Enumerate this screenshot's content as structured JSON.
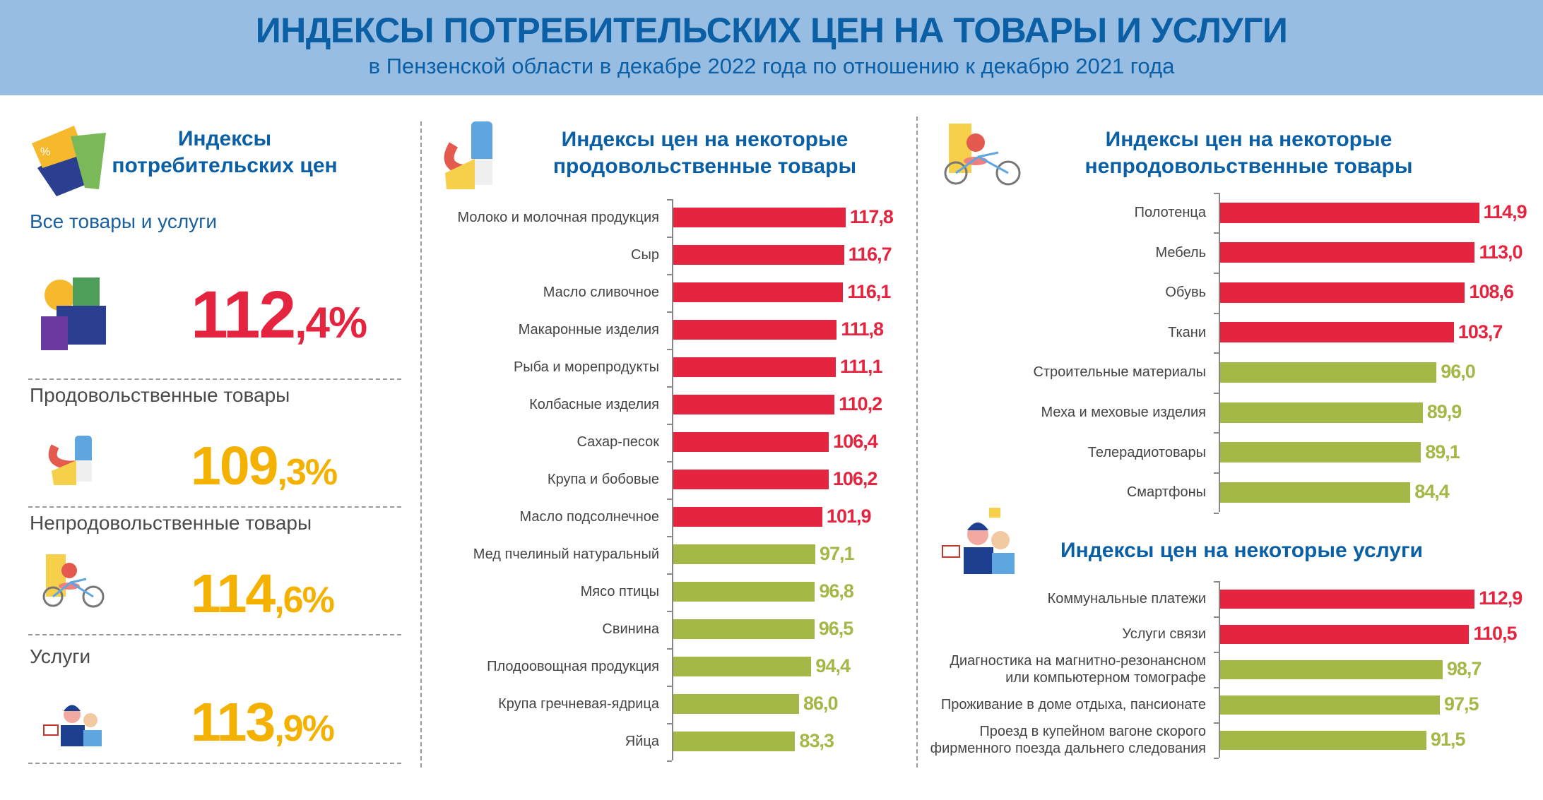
{
  "header": {
    "title": "ИНДЕКСЫ ПОТРЕБИТЕЛЬСКИХ ЦЕН НА ТОВАРЫ И УСЛУГИ",
    "subtitle": "в Пензенской области в декабре 2022 года по отношению к декабрю 2021 года"
  },
  "colors": {
    "above_100": "#e5243f",
    "below_100": "#a3b846",
    "highlight": "#f5b100",
    "heading": "#0b5fa5",
    "header_bg": "#97bde3"
  },
  "summary": {
    "title_line1": "Индексы",
    "title_line2": "потребительских цен",
    "icon": "price-tags-icon",
    "items": [
      {
        "label": "Все товары и услуги",
        "int": "112",
        "dec": ",4%",
        "icon": "gifts-coin-icon"
      },
      {
        "label": "Продовольственные  товары",
        "int": "109",
        "dec": ",3%",
        "icon": "food-icon"
      },
      {
        "label": "Непродовольственные  товары",
        "int": "114",
        "dec": ",6%",
        "icon": "coat-bicycle-icon"
      },
      {
        "label": "Услуги",
        "int": "113",
        "dec": ",9%",
        "icon": "people-services-icon"
      }
    ]
  },
  "chart_data": [
    {
      "type": "bar",
      "orientation": "horizontal",
      "title_line1": "Индексы цен на некоторые",
      "title_line2": "продовольственные товары",
      "categories": [
        "Молоко и молочная  продукция",
        "Сыр",
        "Масло сливочное",
        "Макаронные  изделия",
        "Рыба и морепродукты",
        "Колбасные изделия",
        "Сахар-песок",
        "Крупа и бобовые",
        "Масло подсолнечное",
        "Мед пчелиный  натуральный",
        "Мясо птицы",
        "Свинина",
        "Плодоовощная  продукция",
        "Крупа гречневая-ядрица",
        "Яйца"
      ],
      "values": [
        117.8,
        116.7,
        116.1,
        111.8,
        111.1,
        110.2,
        106.4,
        106.2,
        101.9,
        97.1,
        96.8,
        96.5,
        94.4,
        86.0,
        83.3
      ],
      "value_labels": [
        "117,8",
        "116,7",
        "116,1",
        "111,8",
        "111,1",
        "110,2",
        "106,4",
        "106,2",
        "101,9",
        "97,1",
        "96,8",
        "96,5",
        "94,4",
        "86,0",
        "83,3"
      ]
    },
    {
      "type": "bar",
      "orientation": "horizontal",
      "title_line1": "Индексы цен на некоторые",
      "title_line2": "непродовольственные товары",
      "categories": [
        "Полотенца",
        "Мебель",
        "Обувь",
        "Ткани",
        "Строительные материалы",
        "Меха и меховые изделия ",
        "Телерадиотовары",
        "Смартфоны"
      ],
      "values": [
        114.9,
        113.0,
        108.6,
        103.7,
        96.0,
        89.9,
        89.1,
        84.4
      ],
      "value_labels": [
        "114,9",
        "113,0",
        "108,6",
        "103,7",
        "96,0",
        "89,9",
        "89,1",
        "84,4"
      ]
    },
    {
      "type": "bar",
      "orientation": "horizontal",
      "title_line1": "Индексы цен на некоторые услуги",
      "categories": [
        "Коммунальные платежи",
        "Услуги связи",
        "Диагностика на магнитно-резонансном\nили  компьютерном томографе",
        "Проживание в доме отдыха, пансионате",
        "Проезд в купейном вагоне скорого\nфирменного поезда дальнего следования"
      ],
      "values": [
        112.9,
        110.5,
        98.7,
        97.5,
        91.5
      ],
      "value_labels": [
        "112,9",
        "110,5",
        "98,7",
        "97,5",
        "91,5"
      ]
    }
  ]
}
